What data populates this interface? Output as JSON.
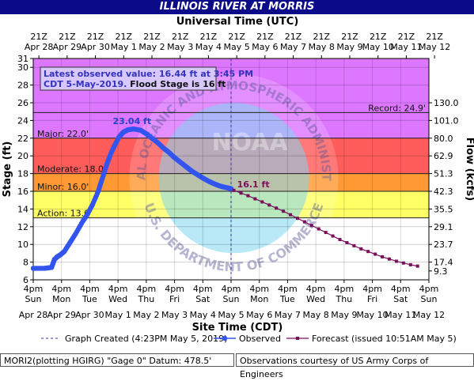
{
  "title": "ILLINOIS RIVER AT MORRIS",
  "top_axis_title": "Universal Time (UTC)",
  "bottom_axis_title": "Site Time (CDT)",
  "ylabel_left": "Stage (ft)",
  "ylabel_right": "Flow (kcfs)",
  "info_box": {
    "line1": "Latest observed value: 16.44 ft at 3:45 PM",
    "line2_prefix": "CDT 5-May-2019.",
    "line2_suffix": "Flood Stage is 16 ft"
  },
  "legend": {
    "graph_created": "Graph Created (4:23PM May 5, 2019)",
    "observed": "Observed",
    "forecast": "Forecast (issued 10:51AM May 5)"
  },
  "footer": {
    "left": "MORI2(plotting HGIRG) \"Gage 0\" Datum: 478.5'",
    "right": "Observations courtesy of US Army Corps of Engineers"
  },
  "watermark": {
    "text_top": "NATIONAL OCEANIC AND ATMOSPHERIC ADMINISTRATION",
    "text_bottom": "U.S. DEPARTMENT OF COMMERCE",
    "center": "NOAA"
  },
  "colors": {
    "record_band": "#dd77ff",
    "major_band": "#ff5c5c",
    "moderate_band": "#ff9933",
    "minor_band": "#ffd000",
    "action_band": "#ffff66",
    "observed": "#3355ee",
    "forecast": "#7a0f5a",
    "title_bar": "#0b0b8a"
  },
  "chart_data": {
    "type": "line",
    "ylim": [
      6,
      31
    ],
    "y_ticks": [
      6,
      8,
      10,
      12,
      14,
      16,
      18,
      20,
      22,
      24,
      26,
      28,
      30,
      31
    ],
    "right_ticks": [
      {
        "stage": 7,
        "label": "9.3"
      },
      {
        "stage": 8,
        "label": "17.4"
      },
      {
        "stage": 10,
        "label": "23.7"
      },
      {
        "stage": 12,
        "label": "29.1"
      },
      {
        "stage": 14,
        "label": "35.5"
      },
      {
        "stage": 16,
        "label": "42.3"
      },
      {
        "stage": 18,
        "label": "51.3"
      },
      {
        "stage": 20,
        "label": "62.9"
      },
      {
        "stage": 22,
        "label": "80.0"
      },
      {
        "stage": 24,
        "label": "101.0"
      },
      {
        "stage": 26,
        "label": "130.0"
      }
    ],
    "x_unit": "days since Apr 28 4pm CDT",
    "xlim": [
      0,
      14
    ],
    "bottom_ticks": [
      {
        "time": "4pm",
        "day": "Sun",
        "date": "Apr 28"
      },
      {
        "time": "4pm",
        "day": "Mon",
        "date": "Apr 29"
      },
      {
        "time": "4pm",
        "day": "Tue",
        "date": "Apr 30"
      },
      {
        "time": "4pm",
        "day": "Wed",
        "date": "May 1"
      },
      {
        "time": "4pm",
        "day": "Thu",
        "date": "May 2"
      },
      {
        "time": "4pm",
        "day": "Fri",
        "date": "May 3"
      },
      {
        "time": "4pm",
        "day": "Sat",
        "date": "May 4"
      },
      {
        "time": "4pm",
        "day": "Sun",
        "date": "May 5"
      },
      {
        "time": "4pm",
        "day": "Mon",
        "date": "May 6"
      },
      {
        "time": "4pm",
        "day": "Tue",
        "date": "May 7"
      },
      {
        "time": "4pm",
        "day": "Wed",
        "date": "May 8"
      },
      {
        "time": "4pm",
        "day": "Thu",
        "date": "May 9"
      },
      {
        "time": "4pm",
        "day": "Fri",
        "date": "May 10"
      },
      {
        "time": "4pm",
        "day": "Sat",
        "date": "May 11"
      },
      {
        "time": "4pm",
        "day": "Sun",
        "date": "May 12"
      }
    ],
    "top_ticks": [
      {
        "time": "21Z",
        "date": "Apr 28"
      },
      {
        "time": "21Z",
        "date": "Apr 29"
      },
      {
        "time": "21Z",
        "date": "Apr 30"
      },
      {
        "time": "21Z",
        "date": "May 1"
      },
      {
        "time": "21Z",
        "date": "May 2"
      },
      {
        "time": "21Z",
        "date": "May 3"
      },
      {
        "time": "21Z",
        "date": "May 4"
      },
      {
        "time": "21Z",
        "date": "May 5"
      },
      {
        "time": "21Z",
        "date": "May 6"
      },
      {
        "time": "21Z",
        "date": "May 7"
      },
      {
        "time": "21Z",
        "date": "May 8"
      },
      {
        "time": "21Z",
        "date": "May 9"
      },
      {
        "time": "21Z",
        "date": "May 10"
      },
      {
        "time": "21Z",
        "date": "May 11"
      },
      {
        "time": "21Z",
        "date": "May 12"
      }
    ],
    "flood_categories": [
      {
        "name": "Record",
        "label": "Record: 24.9'",
        "stage": 24.9,
        "color_key": "record_band"
      },
      {
        "name": "Major",
        "label": "Major: 22.0'",
        "stage": 22.0,
        "color_key": "major_band"
      },
      {
        "name": "Moderate",
        "label": "Moderate: 18.0'",
        "stage": 18.0,
        "color_key": "moderate_band"
      },
      {
        "name": "Minor",
        "label": "Minor: 16.0'",
        "stage": 16.0,
        "color_key": "minor_band"
      },
      {
        "name": "Action",
        "label": "Action: 13.0'",
        "stage": 13.0,
        "color_key": "action_band"
      }
    ],
    "graph_created_x": 7.0,
    "peak_label": "23.04 ft",
    "peak": {
      "x": 3.55,
      "y": 23.04
    },
    "forecast_start_label": "16.1 ft",
    "forecast_start": {
      "x": 7.1,
      "y": 16.1
    },
    "observed": {
      "x": [
        0,
        0.4,
        0.65,
        0.75,
        0.85,
        0.95,
        1.1,
        1.3,
        1.5,
        1.75,
        1.9,
        2.1,
        2.3,
        2.45,
        2.6,
        2.75,
        2.9,
        3.05,
        3.2,
        3.35,
        3.55,
        3.8,
        4.0,
        4.2,
        4.4,
        4.6,
        4.8,
        5.0,
        5.2,
        5.4,
        5.6,
        5.8,
        6.0,
        6.2,
        6.4,
        6.6,
        6.8,
        7.0
      ],
      "y": [
        7.3,
        7.3,
        7.4,
        8.3,
        8.6,
        8.8,
        9.2,
        10.2,
        11.2,
        12.6,
        13.3,
        14.5,
        16.0,
        17.5,
        19.0,
        20.3,
        21.3,
        22.2,
        22.7,
        22.95,
        23.04,
        22.9,
        22.5,
        22.0,
        21.5,
        20.9,
        20.4,
        19.8,
        19.3,
        18.8,
        18.3,
        17.9,
        17.5,
        17.15,
        16.85,
        16.6,
        16.44,
        16.3
      ]
    },
    "forecast": {
      "x": [
        7.1,
        7.35,
        7.6,
        7.85,
        8.1,
        8.35,
        8.6,
        8.85,
        9.1,
        9.35,
        9.6,
        9.85,
        10.1,
        10.35,
        10.6,
        10.85,
        11.1,
        11.35,
        11.6,
        11.85,
        12.1,
        12.35,
        12.6,
        12.85,
        13.1,
        13.35,
        13.6
      ],
      "y": [
        16.1,
        15.8,
        15.5,
        15.15,
        14.8,
        14.45,
        14.1,
        13.75,
        13.35,
        12.95,
        12.55,
        12.15,
        11.75,
        11.35,
        10.95,
        10.55,
        10.2,
        9.85,
        9.5,
        9.2,
        8.9,
        8.6,
        8.35,
        8.1,
        7.9,
        7.7,
        7.55
      ]
    }
  }
}
